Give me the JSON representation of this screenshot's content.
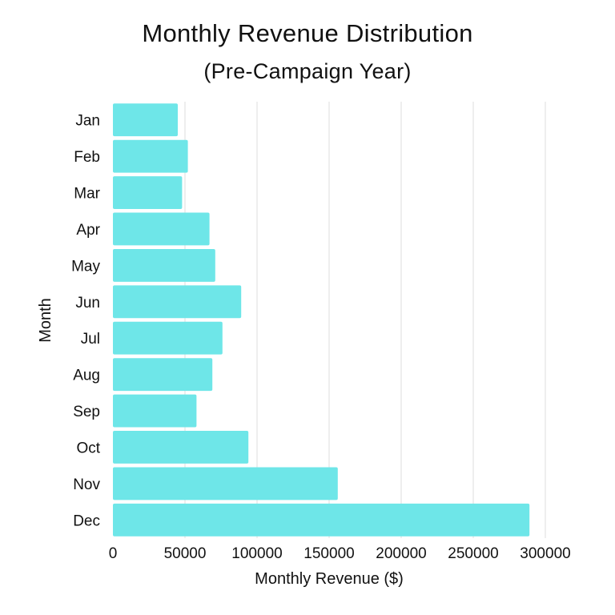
{
  "chart_data": {
    "type": "bar",
    "orientation": "horizontal",
    "title": "Monthly Revenue Distribution",
    "subtitle": "(Pre-Campaign Year)",
    "xlabel": "Monthly Revenue ($)",
    "ylabel": "Month",
    "categories": [
      "Jan",
      "Feb",
      "Mar",
      "Apr",
      "May",
      "Jun",
      "Jul",
      "Aug",
      "Sep",
      "Oct",
      "Nov",
      "Dec"
    ],
    "values": [
      45000,
      52000,
      48000,
      67000,
      71000,
      89000,
      76000,
      69000,
      58000,
      94000,
      156000,
      289000
    ],
    "xlim": [
      0,
      300000
    ],
    "xticks": [
      "0",
      "50000",
      "100000",
      "150000",
      "200000",
      "250000",
      "300000"
    ],
    "grid": "vertical",
    "bar_color": "#6ee6e8"
  }
}
